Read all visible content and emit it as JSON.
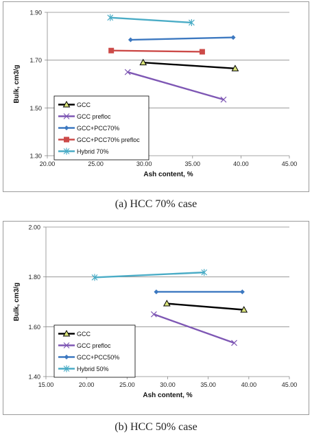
{
  "chart_data": [
    {
      "type": "line",
      "caption": "(a) HCC 70% case",
      "xlabel": "Ash content, %",
      "ylabel": "Bulk, cm3/g",
      "xlim": [
        20,
        45
      ],
      "ylim": [
        1.3,
        1.9
      ],
      "xticks": [
        "20.00",
        "25.00",
        "30.00",
        "35.00",
        "40.00",
        "45.00"
      ],
      "yticks": [
        "1.30",
        "1.50",
        "1.70",
        "1.90"
      ],
      "grid": "horizontal",
      "legend_position": "bottom-left",
      "series": [
        {
          "name": "GCC",
          "color": "#000000",
          "marker": "triangle",
          "points": [
            [
              29.9,
              1.69
            ],
            [
              39.4,
              1.665
            ]
          ]
        },
        {
          "name": "GCC prefloc",
          "color": "#7e57b4",
          "marker": "x",
          "points": [
            [
              28.3,
              1.65
            ],
            [
              38.2,
              1.535
            ]
          ]
        },
        {
          "name": "GCC+PCC70%",
          "color": "#3c78c0",
          "marker": "diamond",
          "points": [
            [
              28.6,
              1.785
            ],
            [
              39.2,
              1.795
            ]
          ]
        },
        {
          "name": "GCC+PCC70%  prefloc",
          "color": "#cc4a48",
          "marker": "square",
          "points": [
            [
              26.6,
              1.74
            ],
            [
              36.0,
              1.735
            ]
          ]
        },
        {
          "name": "Hybrid 70%",
          "color": "#4aacc6",
          "marker": "star",
          "points": [
            [
              26.5,
              1.878
            ],
            [
              34.9,
              1.857
            ]
          ]
        }
      ]
    },
    {
      "type": "line",
      "caption": "(b) HCC 50% case",
      "xlabel": "Ash content, %",
      "ylabel": "Bulk, cm3/g",
      "xlim": [
        15,
        45
      ],
      "ylim": [
        1.4,
        2.0
      ],
      "xticks": [
        "15.00",
        "20.00",
        "25.00",
        "30.00",
        "35.00",
        "40.00",
        "45.00"
      ],
      "yticks": [
        "1.40",
        "1.60",
        "1.80",
        "2.00"
      ],
      "grid": "horizontal",
      "legend_position": "bottom-left",
      "series": [
        {
          "name": "GCC",
          "color": "#000000",
          "marker": "triangle",
          "points": [
            [
              29.9,
              1.693
            ],
            [
              39.4,
              1.668
            ]
          ]
        },
        {
          "name": "GCC prefloc",
          "color": "#7e57b4",
          "marker": "x",
          "points": [
            [
              28.3,
              1.65
            ],
            [
              38.2,
              1.535
            ]
          ]
        },
        {
          "name": "GCC+PCC50%",
          "color": "#3c78c0",
          "marker": "diamond",
          "points": [
            [
              28.6,
              1.74
            ],
            [
              39.2,
              1.74
            ]
          ]
        },
        {
          "name": "Hybrid 50%",
          "color": "#4aacc6",
          "marker": "star",
          "points": [
            [
              21.0,
              1.798
            ],
            [
              34.5,
              1.818
            ]
          ]
        }
      ]
    }
  ]
}
